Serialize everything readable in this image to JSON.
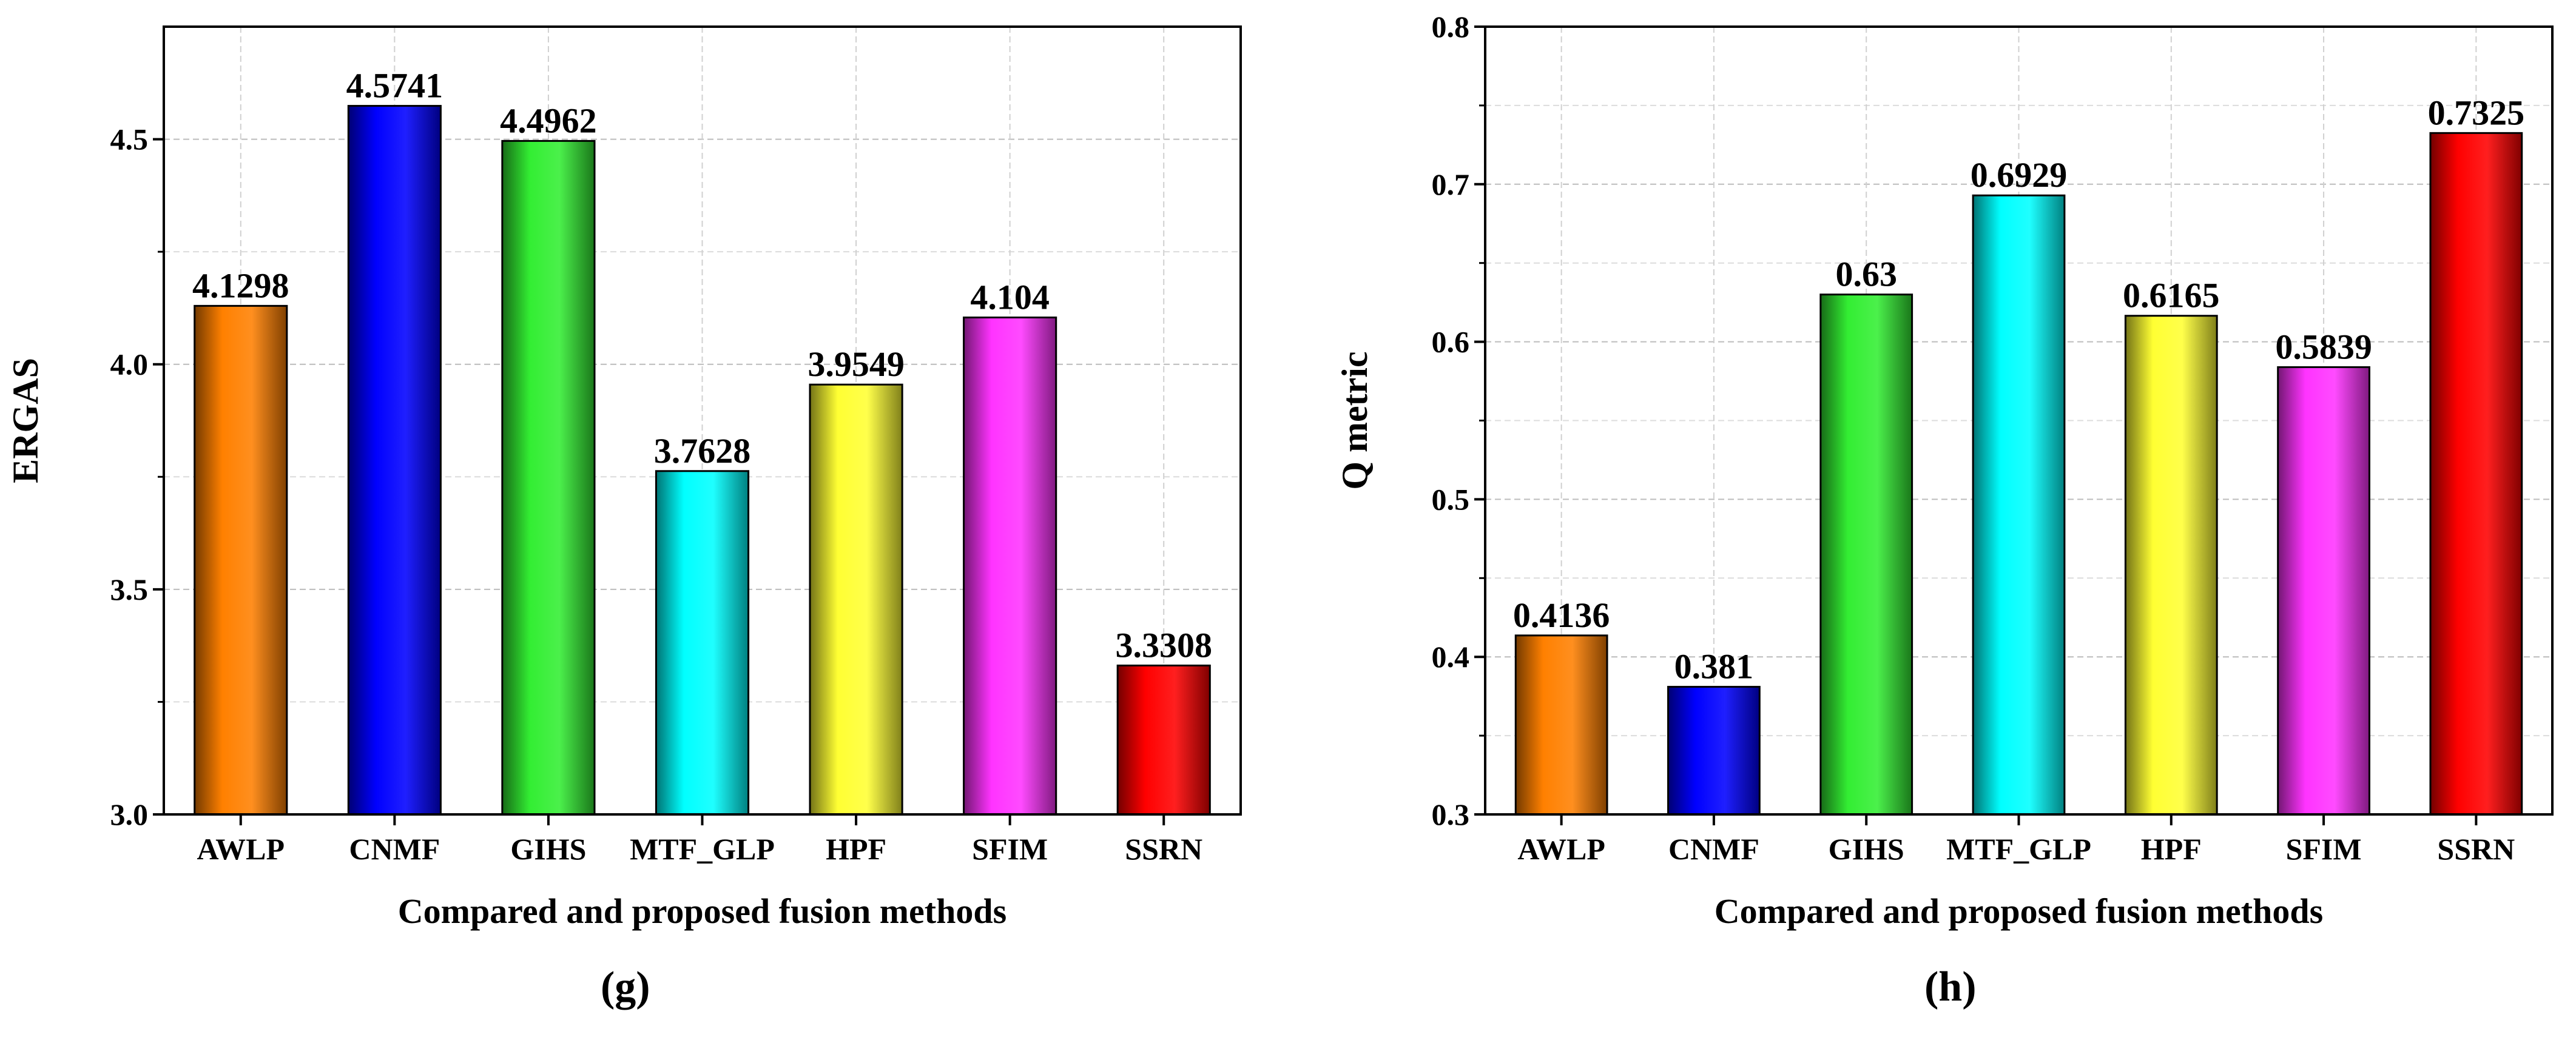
{
  "chart_data": [
    {
      "type": "bar",
      "panel_label": "(g)",
      "title": "",
      "xlabel": "Compared and proposed fusion methods",
      "ylabel": "ERGAS",
      "categories": [
        "AWLP",
        "CNMF",
        "GIHS",
        "MTF_GLP",
        "HPF",
        "SFIM",
        "SSRN"
      ],
      "values": [
        4.1298,
        4.5741,
        4.4962,
        3.7628,
        3.9549,
        4.104,
        3.3308
      ],
      "data_labels": [
        "4.1298",
        "4.5741",
        "4.4962",
        "3.7628",
        "3.9549",
        "4.104",
        "3.3308"
      ],
      "ylim": [
        3.0,
        4.75
      ],
      "yticks": [
        3.0,
        3.5,
        4.0,
        4.5
      ],
      "ytick_labels": [
        "3.0",
        "3.5",
        "4.0",
        "4.5"
      ],
      "grid": true,
      "colors": [
        "#ff8000",
        "#0000ff",
        "#33ee33",
        "#00ffff",
        "#ffff33",
        "#ff33ff",
        "#ff0000"
      ]
    },
    {
      "type": "bar",
      "panel_label": "(h)",
      "title": "",
      "xlabel": "Compared and proposed fusion methods",
      "ylabel": "Q metric",
      "categories": [
        "AWLP",
        "CNMF",
        "GIHS",
        "MTF_GLP",
        "HPF",
        "SFIM",
        "SSRN"
      ],
      "values": [
        0.4136,
        0.381,
        0.63,
        0.6929,
        0.6165,
        0.5839,
        0.7325
      ],
      "data_labels": [
        "0.4136",
        "0.381",
        "0.63",
        "0.6929",
        "0.6165",
        "0.5839",
        "0.7325"
      ],
      "ylim": [
        0.3,
        0.8
      ],
      "yticks": [
        0.3,
        0.4,
        0.5,
        0.6,
        0.7,
        0.8
      ],
      "ytick_labels": [
        "0.3",
        "0.4",
        "0.5",
        "0.6",
        "0.7",
        "0.8"
      ],
      "grid": true,
      "colors": [
        "#ff8000",
        "#0000ff",
        "#33ee33",
        "#00ffff",
        "#ffff33",
        "#ff33ff",
        "#ff0000"
      ]
    }
  ]
}
